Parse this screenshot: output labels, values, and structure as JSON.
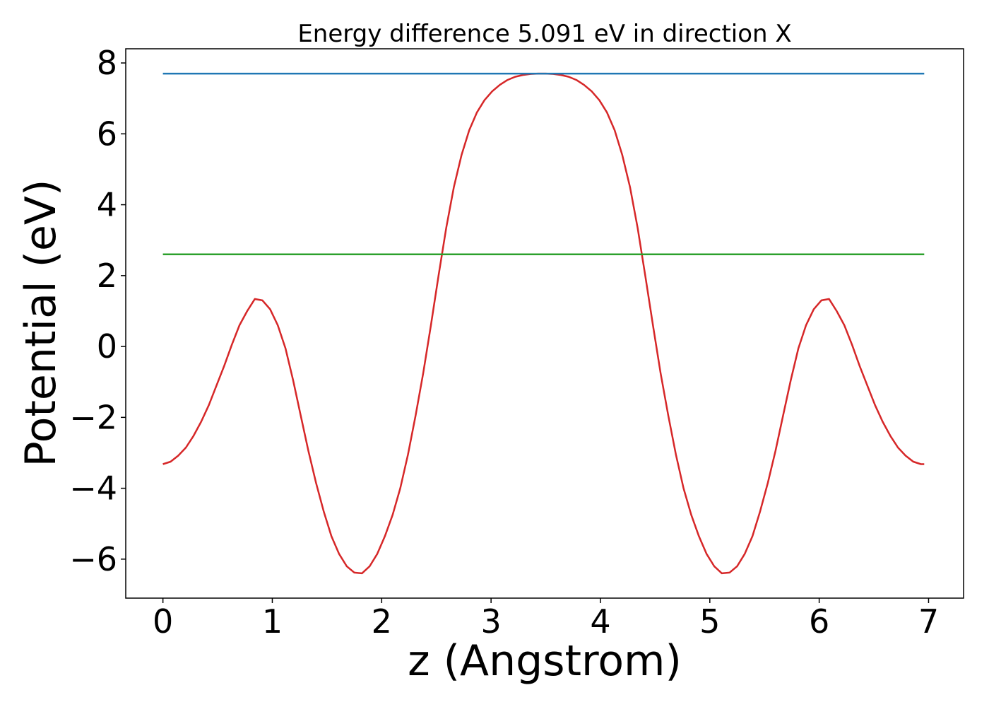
{
  "chart_data": {
    "type": "line",
    "title": "Energy difference 5.091 eV in direction X",
    "xlabel": "z (Angstrom)",
    "ylabel": "Potential (eV)",
    "xlim": [
      -0.34,
      7.32
    ],
    "ylim": [
      -7.1,
      8.4
    ],
    "xticks": [
      0,
      1,
      2,
      3,
      4,
      5,
      6,
      7
    ],
    "yticks": [
      -6,
      -4,
      -2,
      0,
      2,
      4,
      6,
      8
    ],
    "grid": false,
    "legend": "none",
    "series": [
      {
        "color": "#d62728",
        "x": [
          0.0,
          0.07,
          0.14,
          0.21,
          0.28,
          0.35,
          0.42,
          0.49,
          0.56,
          0.63,
          0.7,
          0.77,
          0.84,
          0.91,
          0.98,
          1.05,
          1.12,
          1.19,
          1.26,
          1.33,
          1.4,
          1.47,
          1.54,
          1.61,
          1.68,
          1.75,
          1.82,
          1.89,
          1.96,
          2.03,
          2.1,
          2.17,
          2.24,
          2.31,
          2.38,
          2.45,
          2.52,
          2.59,
          2.66,
          2.73,
          2.8,
          2.87,
          2.94,
          3.01,
          3.08,
          3.15,
          3.22,
          3.29,
          3.36,
          3.43,
          3.5,
          3.57,
          3.64,
          3.71,
          3.78,
          3.85,
          3.92,
          3.99,
          4.06,
          4.13,
          4.2,
          4.27,
          4.34,
          4.41,
          4.48,
          4.55,
          4.62,
          4.69,
          4.76,
          4.83,
          4.9,
          4.97,
          5.04,
          5.11,
          5.18,
          5.25,
          5.32,
          5.39,
          5.46,
          5.53,
          5.6,
          5.67,
          5.74,
          5.81,
          5.88,
          5.95,
          6.02,
          6.09,
          6.16,
          6.23,
          6.3,
          6.37,
          6.44,
          6.51,
          6.58,
          6.65,
          6.72,
          6.79,
          6.86,
          6.93,
          6.96
        ],
        "y": [
          -3.32,
          -3.25,
          -3.08,
          -2.85,
          -2.52,
          -2.12,
          -1.65,
          -1.1,
          -0.55,
          0.05,
          0.6,
          1.0,
          1.34,
          1.3,
          1.05,
          0.6,
          -0.05,
          -0.95,
          -1.95,
          -2.95,
          -3.85,
          -4.65,
          -5.35,
          -5.85,
          -6.2,
          -6.38,
          -6.4,
          -6.2,
          -5.85,
          -5.35,
          -4.75,
          -4.0,
          -3.05,
          -1.95,
          -0.75,
          0.6,
          2.0,
          3.35,
          4.5,
          5.4,
          6.1,
          6.6,
          6.95,
          7.2,
          7.38,
          7.52,
          7.61,
          7.66,
          7.69,
          7.7,
          7.7,
          7.69,
          7.66,
          7.61,
          7.52,
          7.38,
          7.2,
          6.95,
          6.6,
          6.1,
          5.4,
          4.5,
          3.35,
          2.0,
          0.6,
          -0.75,
          -1.95,
          -3.05,
          -4.0,
          -4.75,
          -5.35,
          -5.85,
          -6.2,
          -6.4,
          -6.38,
          -6.2,
          -5.85,
          -5.35,
          -4.65,
          -3.85,
          -2.95,
          -1.95,
          -0.95,
          -0.05,
          0.6,
          1.05,
          1.3,
          1.34,
          1.0,
          0.6,
          0.05,
          -0.55,
          -1.1,
          -1.65,
          -2.12,
          -2.52,
          -2.85,
          -3.08,
          -3.25,
          -3.32,
          -3.32
        ]
      },
      {
        "color": "#1f77b4",
        "x": [
          0.0,
          6.96
        ],
        "y": [
          7.7,
          7.7
        ]
      },
      {
        "color": "#2ca02c",
        "x": [
          0.0,
          6.96
        ],
        "y": [
          2.6,
          2.6
        ]
      }
    ]
  }
}
